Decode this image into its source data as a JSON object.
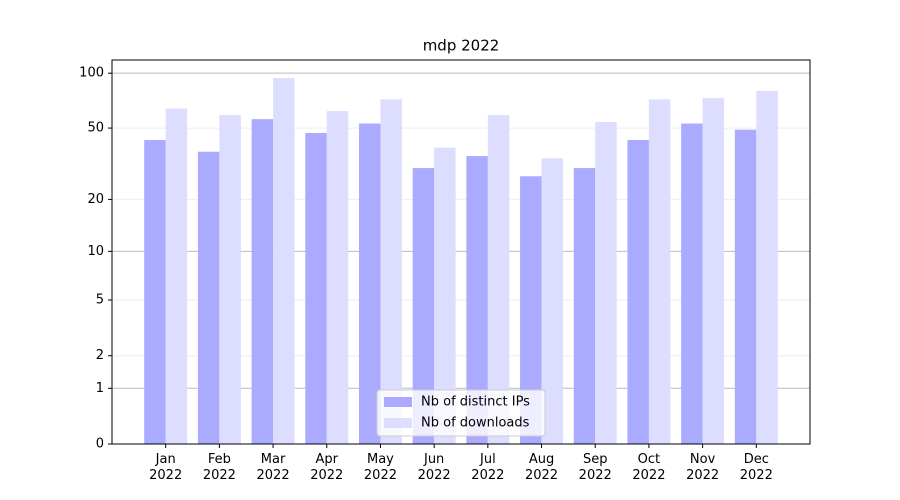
{
  "chart_data": {
    "type": "bar",
    "title": "mdp 2022",
    "categories": [
      "Jan\n2022",
      "Feb\n2022",
      "Mar\n2022",
      "Apr\n2022",
      "May\n2022",
      "Jun\n2022",
      "Jul\n2022",
      "Aug\n2022",
      "Sep\n2022",
      "Oct\n2022",
      "Nov\n2022",
      "Dec\n2022"
    ],
    "series": [
      {
        "name": "Nb of distinct IPs",
        "color": "#aaaaff",
        "values": [
          43,
          37,
          56,
          47,
          53,
          30,
          35,
          27,
          30,
          43,
          53,
          49
        ]
      },
      {
        "name": "Nb of downloads",
        "color": "#ddddff",
        "values": [
          64,
          59,
          94,
          62,
          72,
          39,
          59,
          34,
          54,
          72,
          73,
          80
        ]
      }
    ],
    "yscale": "log1p",
    "ylim": [
      0,
      118
    ],
    "yticks": [
      0,
      1,
      2,
      5,
      10,
      20,
      50,
      100
    ],
    "grid": true,
    "legend": "lower center"
  }
}
